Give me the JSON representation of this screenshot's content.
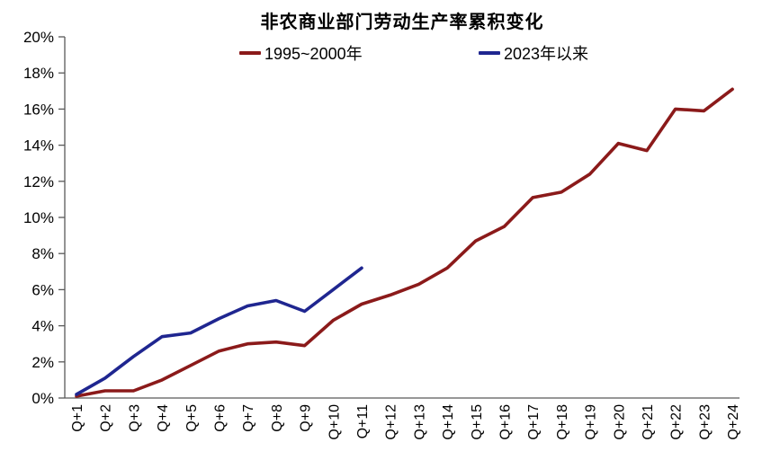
{
  "title": "非农商业部门劳动生产率累积变化",
  "chart_data": {
    "type": "line",
    "title": "非农商业部门劳动生产率累积变化",
    "categories": [
      "Q+1",
      "Q+2",
      "Q+3",
      "Q+4",
      "Q+5",
      "Q+6",
      "Q+7",
      "Q+8",
      "Q+9",
      "Q+10",
      "Q+11",
      "Q+12",
      "Q+13",
      "Q+14",
      "Q+15",
      "Q+16",
      "Q+17",
      "Q+18",
      "Q+19",
      "Q+20",
      "Q+21",
      "Q+22",
      "Q+23",
      "Q+24"
    ],
    "series": [
      {
        "name": "1995~2000年",
        "color": "#8B1A1A",
        "values": [
          0.1,
          0.4,
          0.4,
          1.0,
          1.8,
          2.6,
          3.0,
          3.1,
          2.9,
          4.3,
          5.2,
          5.7,
          6.3,
          7.2,
          8.7,
          9.5,
          11.1,
          11.4,
          12.4,
          14.1,
          13.7,
          16.0,
          15.9,
          17.1
        ]
      },
      {
        "name": "2023年以来",
        "color": "#1F2690",
        "values": [
          0.2,
          1.1,
          2.3,
          3.4,
          3.6,
          4.4,
          5.1,
          5.4,
          4.8,
          6.0,
          7.2
        ]
      }
    ],
    "xlabel": "",
    "ylabel": "",
    "ylim": [
      0,
      20
    ],
    "ytick_step": 2,
    "ytick_suffix": "%",
    "grid": false,
    "legend_position": "top",
    "axis_color": "#595959",
    "label_color": "#000000"
  }
}
